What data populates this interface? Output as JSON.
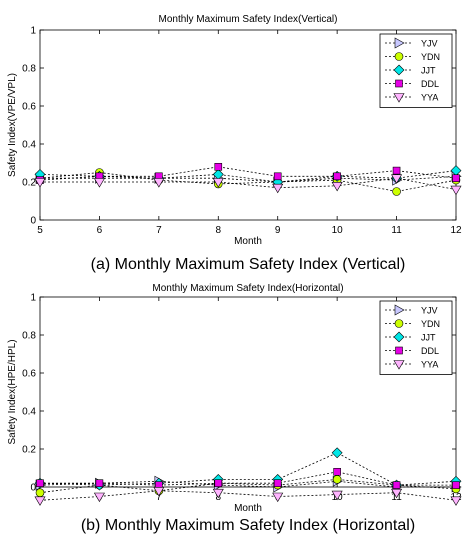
{
  "chart_data": [
    {
      "type": "line",
      "title": "Monthly Maximum Safety Index(Vertical)",
      "xlabel": "Month",
      "ylabel": "Safety Index(VPE/VPL)",
      "caption": "(a) Monthly Maximum Safety Index (Vertical)",
      "x": [
        5,
        6,
        7,
        8,
        9,
        10,
        11,
        12
      ],
      "xticks": [
        "5",
        "6",
        "7",
        "8",
        "9",
        "10",
        "11",
        "12"
      ],
      "yticks": [
        "0",
        "0.2",
        "0.4",
        "0.6",
        "0.8",
        "1"
      ],
      "xlim": [
        5,
        12
      ],
      "ylim": [
        0,
        1
      ],
      "legend_position": "top-right",
      "series": [
        {
          "name": "YJV",
          "marker": "triangle-right",
          "color": "#c8c8ff",
          "values": [
            0.22,
            0.22,
            0.22,
            0.22,
            0.2,
            0.22,
            0.21,
            0.23
          ]
        },
        {
          "name": "YDN",
          "marker": "circle",
          "color": "#ccff00",
          "values": [
            0.22,
            0.25,
            0.21,
            0.19,
            0.2,
            0.21,
            0.15,
            0.21
          ]
        },
        {
          "name": "JJT",
          "marker": "diamond",
          "color": "#00e6e6",
          "values": [
            0.24,
            0.23,
            0.22,
            0.24,
            0.2,
            0.23,
            0.22,
            0.26
          ]
        },
        {
          "name": "DDL",
          "marker": "square",
          "color": "#e600e6",
          "values": [
            0.21,
            0.23,
            0.23,
            0.28,
            0.23,
            0.23,
            0.26,
            0.22
          ]
        },
        {
          "name": "YYA",
          "marker": "triangle-down",
          "color": "#ffb4ff",
          "values": [
            0.2,
            0.2,
            0.2,
            0.2,
            0.17,
            0.18,
            0.22,
            0.16
          ]
        }
      ]
    },
    {
      "type": "line",
      "title": "Monthly Maximum Safety Index(Horizontal)",
      "xlabel": "Month",
      "ylabel": "Safety Index(HPE/HPL)",
      "caption": "(b) Monthly Maximum Safety Index (Horizontal)",
      "x": [
        5,
        6,
        7,
        8,
        9,
        10,
        11,
        12
      ],
      "xticks": [
        "5",
        "6",
        "7",
        "8",
        "9",
        "10",
        "11",
        "12"
      ],
      "yticks": [
        "0",
        "0.2",
        "0.4",
        "0.6",
        "0.8",
        "1"
      ],
      "xlim": [
        5,
        12
      ],
      "ylim": [
        0,
        1
      ],
      "legend_position": "top-right",
      "series": [
        {
          "name": "YJV",
          "marker": "triangle-right",
          "color": "#c8c8ff",
          "values": [
            0.01,
            0.02,
            0.03,
            0.01,
            0.0,
            0.03,
            0.0,
            0.0
          ]
        },
        {
          "name": "YDN",
          "marker": "circle",
          "color": "#ccff00",
          "values": [
            -0.03,
            0.01,
            -0.02,
            0.02,
            0.01,
            0.04,
            0.01,
            -0.01
          ]
        },
        {
          "name": "JJT",
          "marker": "diamond",
          "color": "#00e6e6",
          "values": [
            0.02,
            0.01,
            0.02,
            0.04,
            0.04,
            0.18,
            0.01,
            0.03
          ]
        },
        {
          "name": "DDL",
          "marker": "square",
          "color": "#e600e6",
          "values": [
            0.02,
            0.02,
            0.01,
            0.02,
            0.02,
            0.08,
            0.01,
            0.01
          ]
        },
        {
          "name": "YYA",
          "marker": "triangle-down",
          "color": "#ffb4ff",
          "values": [
            -0.07,
            -0.05,
            -0.02,
            -0.03,
            -0.05,
            -0.04,
            -0.03,
            -0.07
          ]
        }
      ]
    }
  ]
}
